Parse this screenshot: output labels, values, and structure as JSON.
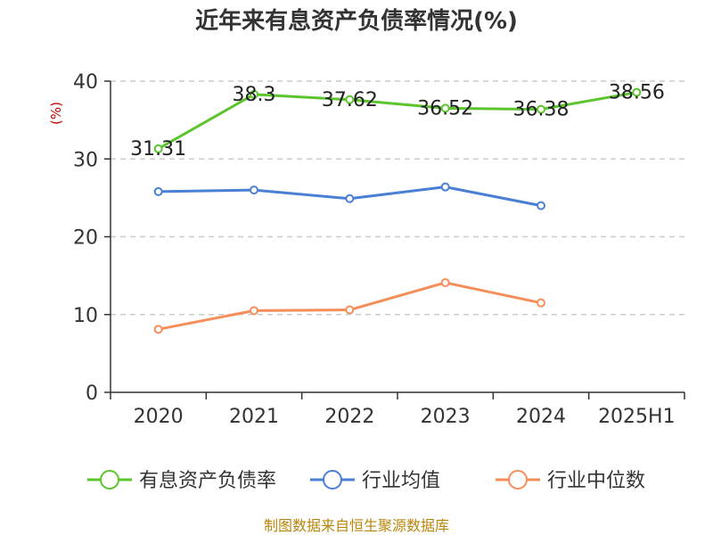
{
  "chart_data": {
    "type": "line",
    "title": "近年来有息资产负债率情况(%)",
    "ylabel": "(%)",
    "xlabel": "",
    "categories": [
      "2020",
      "2021",
      "2022",
      "2023",
      "2024",
      "2025H1"
    ],
    "ylim": [
      0,
      40
    ],
    "yticks": [
      0,
      10,
      20,
      30,
      40
    ],
    "grid": true,
    "legend_position": "bottom",
    "series": [
      {
        "name": "有息资产负债率",
        "color": "#5cc52e",
        "values": [
          31.31,
          38.3,
          37.62,
          36.52,
          36.38,
          38.56
        ],
        "labels": [
          "31.31",
          "38.3",
          "37.62",
          "36.52",
          "36.38",
          "38.56"
        ]
      },
      {
        "name": "行业均值",
        "color": "#4a7fd6",
        "values": [
          25.8,
          26.0,
          24.9,
          26.4,
          24.0,
          null
        ]
      },
      {
        "name": "行业中位数",
        "color": "#f68e5a",
        "values": [
          8.1,
          10.5,
          10.6,
          14.1,
          11.5,
          null
        ]
      }
    ]
  },
  "source": "制图数据来自恒生聚源数据库"
}
